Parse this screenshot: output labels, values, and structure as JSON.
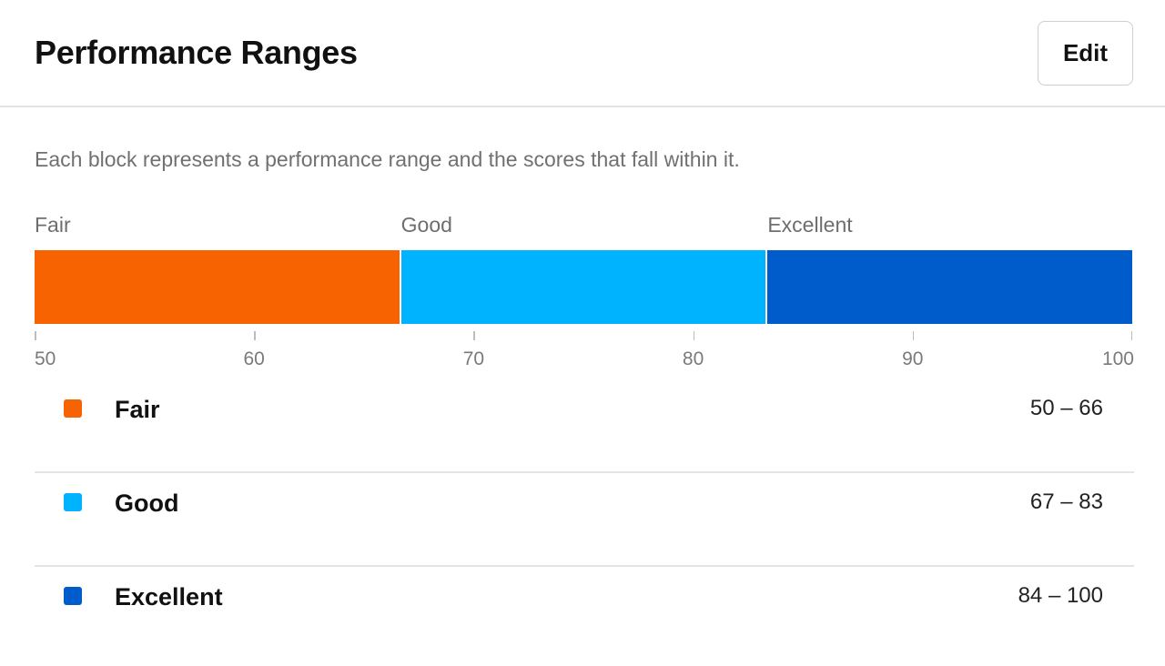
{
  "header": {
    "title": "Performance Ranges",
    "edit_label": "Edit"
  },
  "description": "Each block represents a performance range and the scores that fall within it.",
  "chart_data": {
    "type": "bar",
    "orientation": "horizontal-stacked",
    "xlim": [
      50,
      100
    ],
    "ticks": [
      "50",
      "60",
      "70",
      "80",
      "90",
      "100"
    ],
    "segments": [
      {
        "label": "Fair",
        "min": 50,
        "max": 66,
        "color": "#f66300"
      },
      {
        "label": "Good",
        "min": 67,
        "max": 83,
        "color": "#00b3ff"
      },
      {
        "label": "Excellent",
        "min": 84,
        "max": 100,
        "color": "#005bcb"
      }
    ]
  },
  "legend": [
    {
      "name": "Fair",
      "range": "50 – 66",
      "color": "#f66300"
    },
    {
      "name": "Good",
      "range": "67 – 83",
      "color": "#00b3ff"
    },
    {
      "name": "Excellent",
      "range": "84 – 100",
      "color": "#005bcb"
    }
  ]
}
